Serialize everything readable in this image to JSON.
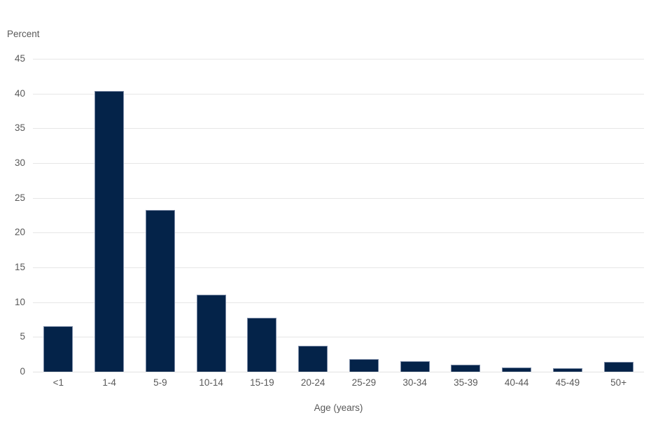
{
  "chart_data": {
    "type": "bar",
    "title": "",
    "ylabel": "Percent",
    "xlabel": "Age (years)",
    "categories": [
      "<1",
      "1-4",
      "5-9",
      "10-14",
      "15-19",
      "20-24",
      "25-29",
      "30-34",
      "35-39",
      "40-44",
      "45-49",
      "50+"
    ],
    "values": [
      6.5,
      40.4,
      23.3,
      11.1,
      7.8,
      3.7,
      1.8,
      1.5,
      1.0,
      0.6,
      0.5,
      1.4
    ],
    "ylim": [
      0,
      45
    ],
    "yticks": [
      0,
      5,
      10,
      15,
      20,
      25,
      30,
      35,
      40,
      45
    ],
    "grid": "horizontal",
    "legend": "none",
    "colors": {
      "bar": "#042349",
      "bar_border": "#8f9cb6",
      "gridline": "#e6e6e6",
      "axis_line": "#e2e2e2",
      "text": "#595959",
      "background": "#ffffff"
    }
  }
}
